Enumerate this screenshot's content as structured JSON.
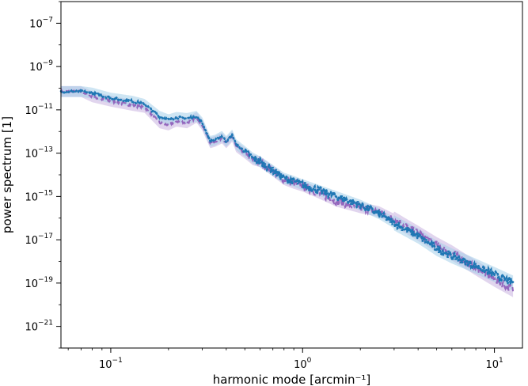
{
  "chart_data": {
    "type": "line",
    "title": "",
    "xlabel": "harmonic mode [arcmin⁻¹]",
    "ylabel": "power spectrum [1]",
    "xscale": "log",
    "yscale": "log",
    "xlim": [
      0.055,
      14.0
    ],
    "ylim": [
      1e-22,
      1e-06
    ],
    "grid": false,
    "legend": "none",
    "x_ticks": [
      {
        "base": "10",
        "exp": "−1",
        "value": 0.1
      },
      {
        "base": "10",
        "exp": "0",
        "value": 1
      },
      {
        "base": "10",
        "exp": "1",
        "value": 10
      }
    ],
    "y_ticks": [
      {
        "base": "10",
        "exp": "−7",
        "value": 1e-07
      },
      {
        "base": "10",
        "exp": "−9",
        "value": 1e-09
      },
      {
        "base": "10",
        "exp": "−11",
        "value": 1e-11
      },
      {
        "base": "10",
        "exp": "−13",
        "value": 1e-13
      },
      {
        "base": "10",
        "exp": "−15",
        "value": 1e-15
      },
      {
        "base": "10",
        "exp": "−17",
        "value": 1e-17
      },
      {
        "base": "10",
        "exp": "−19",
        "value": 1e-19
      },
      {
        "base": "10",
        "exp": "−21",
        "value": 1e-21
      }
    ],
    "series": [
      {
        "style": "dashed",
        "color": "#9467bd",
        "band_color": "#c9b3e0",
        "x": [
          0.055,
          0.07,
          0.08,
          0.1,
          0.13,
          0.15,
          0.18,
          0.2,
          0.22,
          0.25,
          0.28,
          0.3,
          0.33,
          0.35,
          0.38,
          0.4,
          0.43,
          0.45,
          0.5,
          0.55,
          0.6,
          0.7,
          0.8,
          0.9,
          1.0,
          1.2,
          1.5,
          2.0,
          2.5,
          3.0,
          4.0,
          5.0,
          6.0,
          8.0,
          10.0,
          12.5
        ],
        "y": [
          7e-11,
          7e-11,
          4e-11,
          2.5e-11,
          1.6e-11,
          1.3e-11,
          2.5e-12,
          2e-12,
          3e-12,
          2.5e-12,
          4.5e-12,
          2e-12,
          3e-13,
          3.5e-13,
          5e-13,
          3e-13,
          6e-13,
          2e-13,
          1e-13,
          5e-14,
          4e-14,
          1.5e-14,
          6e-15,
          4e-15,
          3e-15,
          1.5e-15,
          6e-16,
          3e-16,
          2e-16,
          9e-17,
          2e-17,
          6e-18,
          2.5e-18,
          5e-19,
          1.5e-19,
          5e-20
        ]
      },
      {
        "style": "dotted",
        "color": "#1f77b4",
        "band_color": "#a6d0ea",
        "x": [
          0.055,
          0.07,
          0.08,
          0.1,
          0.13,
          0.15,
          0.18,
          0.2,
          0.22,
          0.25,
          0.28,
          0.3,
          0.33,
          0.35,
          0.38,
          0.4,
          0.43,
          0.45,
          0.5,
          0.55,
          0.6,
          0.7,
          0.8,
          0.9,
          1.0,
          1.2,
          1.5,
          2.0,
          2.5,
          3.0,
          4.0,
          5.0,
          6.0,
          8.0,
          10.0,
          12.5
        ],
        "y": [
          7e-11,
          7e-11,
          6e-11,
          3.5e-11,
          2.5e-11,
          1.8e-11,
          5e-12,
          3.5e-12,
          4.5e-12,
          4e-12,
          5e-12,
          2.5e-12,
          3.5e-13,
          4e-13,
          6e-13,
          3.5e-13,
          7e-13,
          2.5e-13,
          1.2e-13,
          6e-14,
          4e-14,
          1.6e-14,
          7e-15,
          5e-15,
          3.5e-15,
          2e-15,
          1e-15,
          4e-16,
          1.6e-16,
          6e-17,
          1.5e-17,
          4e-18,
          1.8e-18,
          6e-19,
          2.5e-19,
          1e-19
        ]
      }
    ]
  }
}
